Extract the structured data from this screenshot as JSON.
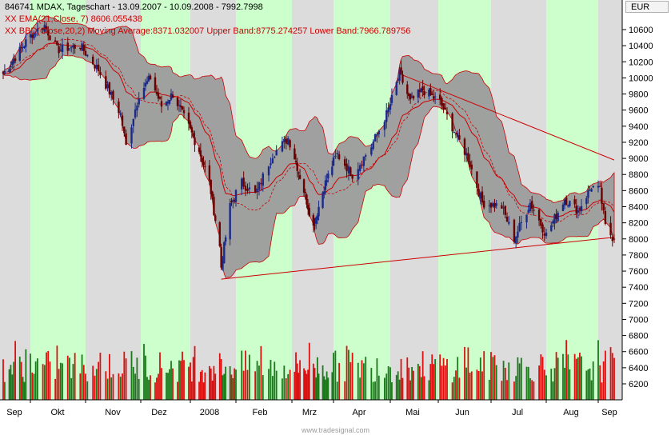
{
  "header": {
    "line1": "846741 MDAX, Tageschart - 13.09.2007 - 10.09.2008 - 7992.7998",
    "line2": "XX EMA(21,Close, 7) 8606.055438",
    "line3": "XX BBD(Close,20,2) Moving Average:8371.032007 Upper Band:8775.274257 Lower Band:7966.789756"
  },
  "currency": "EUR",
  "watermark": "www.tradesignal.com",
  "colors": {
    "band_fill": "#9c9c9c",
    "band_edge": "#cc0000",
    "ema": "#cc0000",
    "up_candle": "#1a2a8a",
    "down_candle": "#6b0000",
    "vol_up": "#1a7a1a",
    "vol_down": "#dd1010",
    "stripe_green": "#ccffcc",
    "stripe_grey": "#dcdcdc",
    "trendline": "#cc0000"
  },
  "chart_data": {
    "type": "candlestick",
    "title": "846741 MDAX, Tageschart - 13.09.2007 - 10.09.2008 - 7992.7998",
    "x_months": [
      "Sep",
      "Okt",
      "Nov",
      "Dez",
      "2008",
      "Feb",
      "Mrz",
      "Apr",
      "Mai",
      "Jun",
      "Jul",
      "Aug",
      "Sep"
    ],
    "y_ticks": [
      6200,
      6400,
      6600,
      6800,
      7000,
      7200,
      7400,
      7600,
      7800,
      8000,
      8200,
      8400,
      8600,
      8800,
      9000,
      9200,
      9400,
      9600,
      9800,
      10000,
      10200,
      10400,
      10600
    ],
    "ylim": [
      6000,
      10800
    ],
    "last_close": 7992.7998,
    "close_path": [
      {
        "date": "13.09.2007",
        "close": 10050
      },
      {
        "date": "02.10.2007",
        "close": 10550
      },
      {
        "date": "09.10.2007",
        "close": 10650
      },
      {
        "date": "16.10.2007",
        "close": 10350
      },
      {
        "date": "29.10.2007",
        "close": 10400
      },
      {
        "date": "08.11.2007",
        "close": 10100
      },
      {
        "date": "20.11.2007",
        "close": 9550
      },
      {
        "date": "23.11.2007",
        "close": 9150
      },
      {
        "date": "30.11.2007",
        "close": 9800
      },
      {
        "date": "07.12.2007",
        "close": 10000
      },
      {
        "date": "14.12.2007",
        "close": 9650
      },
      {
        "date": "21.12.2007",
        "close": 9800
      },
      {
        "date": "07.01.2008",
        "close": 9100
      },
      {
        "date": "14.01.2008",
        "close": 8700
      },
      {
        "date": "21.01.2008",
        "close": 7900
      },
      {
        "date": "22.01.2008",
        "close": 7650
      },
      {
        "date": "28.01.2008",
        "close": 8400
      },
      {
        "date": "04.02.2008",
        "close": 8700
      },
      {
        "date": "11.02.2008",
        "close": 8550
      },
      {
        "date": "20.02.2008",
        "close": 9050
      },
      {
        "date": "28.02.2008",
        "close": 9250
      },
      {
        "date": "10.03.2008",
        "close": 8600
      },
      {
        "date": "17.03.2008",
        "close": 8150
      },
      {
        "date": "25.03.2008",
        "close": 8650
      },
      {
        "date": "03.04.2008",
        "close": 9050
      },
      {
        "date": "11.04.2008",
        "close": 8800
      },
      {
        "date": "21.04.2008",
        "close": 9150
      },
      {
        "date": "29.04.2008",
        "close": 9550
      },
      {
        "date": "07.05.2008",
        "close": 10050
      },
      {
        "date": "14.05.2008",
        "close": 9700
      },
      {
        "date": "22.05.2008",
        "close": 9850
      },
      {
        "date": "02.06.2008",
        "close": 9700
      },
      {
        "date": "11.06.2008",
        "close": 9300
      },
      {
        "date": "18.06.2008",
        "close": 9000
      },
      {
        "date": "26.06.2008",
        "close": 8450
      },
      {
        "date": "07.07.2008",
        "close": 8400
      },
      {
        "date": "14.07.2008",
        "close": 8000
      },
      {
        "date": "23.07.2008",
        "close": 8450
      },
      {
        "date": "01.08.2008",
        "close": 8050
      },
      {
        "date": "12.08.2008",
        "close": 8500
      },
      {
        "date": "20.08.2008",
        "close": 8350
      },
      {
        "date": "28.08.2008",
        "close": 8650
      },
      {
        "date": "02.09.2008",
        "close": 8600
      },
      {
        "date": "05.09.2008",
        "close": 8150
      },
      {
        "date": "10.09.2008",
        "close": 7992.8
      }
    ],
    "ema_last": 8606.055438,
    "bollinger": {
      "moving_average": 8371.032007,
      "upper": 8775.274257,
      "lower": 7966.789756
    },
    "trendlines": [
      {
        "from": {
          "date": "22.01.2008",
          "value": 7500
        },
        "to": {
          "date": "10.09.2008",
          "value": 8020
        }
      },
      {
        "from": {
          "date": "07.05.2008",
          "value": 10050
        },
        "to": {
          "date": "10.09.2008",
          "value": 8980
        }
      }
    ],
    "volume_scale": "relative",
    "grid": true,
    "legend": "top-left"
  }
}
